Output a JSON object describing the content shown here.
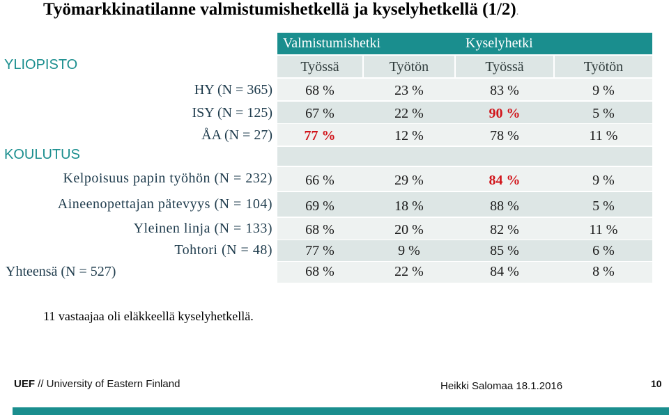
{
  "title": "Työmarkkinatilanne valmistumishetkellä ja kyselyhetkellä (1/2)",
  "title_dot": ".",
  "header": {
    "group1": "Valmistumishetki",
    "group2": "Kyselyhetki",
    "sub": [
      "Työssä",
      "Työtön",
      "Työssä",
      "Työtön"
    ]
  },
  "sections": {
    "yliopisto": "YLIOPISTO",
    "koulutus": "KOULUTUS"
  },
  "rows": [
    {
      "label": "HY (N = 365)",
      "values": [
        "68 %",
        "23 %",
        "83 %",
        "9 %"
      ]
    },
    {
      "label": "ISY (N = 125)",
      "values": [
        "67 %",
        "22 %",
        "90 %",
        "5 %"
      ]
    },
    {
      "label": "ÅA (N = 27)",
      "values": [
        "77 %",
        "12 %",
        "78 %",
        "11 %"
      ]
    },
    {
      "label": "Kelpoisuus papin työhön  (N = 232)",
      "values": [
        "66 %",
        "29 %",
        "84 %",
        "9 %"
      ]
    },
    {
      "label": "Aineenopettajan pätevyys (N = 104)",
      "values": [
        "69 %",
        "18 %",
        "88 %",
        "5 %"
      ]
    },
    {
      "label": "Yleinen linja (N = 133)",
      "values": [
        "68 %",
        "20 %",
        "82 %",
        "11 %"
      ]
    },
    {
      "label": "Tohtori (N = 48)",
      "values": [
        "77 %",
        "9 %",
        "85 %",
        "6 %"
      ]
    },
    {
      "label": "Yhteensä (N = 527)",
      "values": [
        "68 %",
        "22 %",
        "84 %",
        "8 %"
      ]
    }
  ],
  "highlight_color": "#d1141a",
  "accent_color": "#1a8e8e",
  "note": "11 vastaajaa oli eläkkeellä kyselyhetkellä.",
  "footer": {
    "org_bold": "UEF",
    "org_rest": " // University of Eastern Finland",
    "author": "Heikki Salomaa 18.1.2016",
    "page": "10"
  }
}
